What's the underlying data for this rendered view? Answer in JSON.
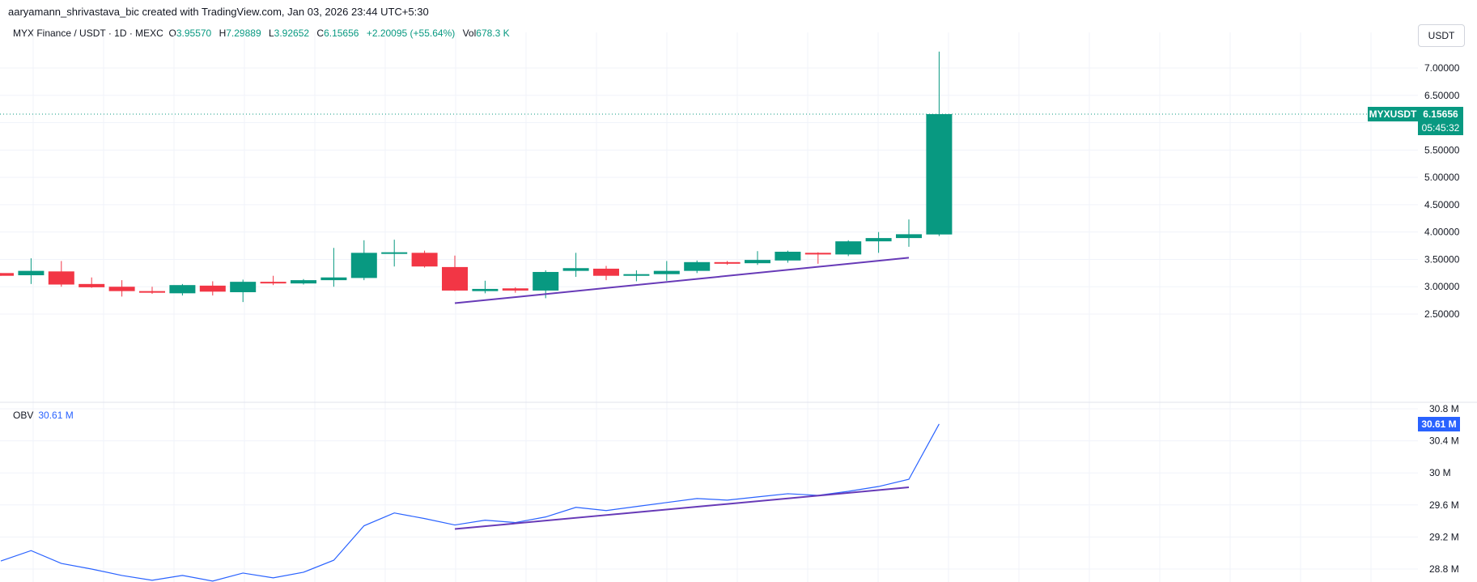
{
  "header": {
    "credit": "aaryamann_shrivastava_bic created with TradingView.com, Jan 03, 2026 23:44 UTC+5:30"
  },
  "legend": {
    "symbol": "MYX Finance / USDT · 1D · MEXC",
    "open_label": "O",
    "open": "3.95570",
    "high_label": "H",
    "high": "7.29889",
    "low_label": "L",
    "low": "3.92652",
    "close_label": "C",
    "close": "6.15656",
    "change": "+2.20095 (+55.64%)",
    "vol_label": "Vol",
    "vol": "678.3 K"
  },
  "currency_button": "USDT",
  "price_tag": {
    "symbol": "MYXUSDT",
    "price": "6.15656",
    "countdown": "05:45:32"
  },
  "obv": {
    "label": "OBV",
    "value": "30.61 M"
  },
  "colors": {
    "up": "#089981",
    "down": "#f23645",
    "obv_line": "#2962ff",
    "trendline": "#673ab7",
    "obv_tag": "#2962ff"
  },
  "chart_data": [
    {
      "type": "candlestick",
      "title": "MYX Finance / USDT · 1D · MEXC",
      "y_axis_ticks": [
        "7.00000",
        "6.50000",
        "6.00000",
        "5.50000",
        "5.00000",
        "4.50000",
        "4.00000",
        "3.50000",
        "3.00000",
        "2.50000"
      ],
      "ylim": [
        2.2,
        7.5
      ],
      "candles": [
        {
          "o": 3.25,
          "h": 3.25,
          "l": 3.2,
          "c": 3.2
        },
        {
          "o": 3.21,
          "h": 3.52,
          "l": 3.05,
          "c": 3.29
        },
        {
          "o": 3.28,
          "h": 3.47,
          "l": 3.0,
          "c": 3.04
        },
        {
          "o": 3.05,
          "h": 3.17,
          "l": 2.98,
          "c": 2.99
        },
        {
          "o": 3.0,
          "h": 3.12,
          "l": 2.82,
          "c": 2.92
        },
        {
          "o": 2.92,
          "h": 3.0,
          "l": 2.87,
          "c": 2.9
        },
        {
          "o": 2.88,
          "h": 3.05,
          "l": 2.84,
          "c": 3.03
        },
        {
          "o": 3.02,
          "h": 3.1,
          "l": 2.84,
          "c": 2.91
        },
        {
          "o": 2.9,
          "h": 3.13,
          "l": 2.72,
          "c": 3.09
        },
        {
          "o": 3.09,
          "h": 3.2,
          "l": 3.03,
          "c": 3.07
        },
        {
          "o": 3.06,
          "h": 3.14,
          "l": 3.04,
          "c": 3.12
        },
        {
          "o": 3.12,
          "h": 3.71,
          "l": 3.0,
          "c": 3.17
        },
        {
          "o": 3.16,
          "h": 3.85,
          "l": 3.12,
          "c": 3.62
        },
        {
          "o": 3.61,
          "h": 3.86,
          "l": 3.37,
          "c": 3.63
        },
        {
          "o": 3.62,
          "h": 3.66,
          "l": 3.35,
          "c": 3.37
        },
        {
          "o": 3.36,
          "h": 3.57,
          "l": 2.92,
          "c": 2.93
        },
        {
          "o": 2.92,
          "h": 3.11,
          "l": 2.88,
          "c": 2.96
        },
        {
          "o": 2.97,
          "h": 2.99,
          "l": 2.89,
          "c": 2.93
        },
        {
          "o": 2.93,
          "h": 3.3,
          "l": 2.79,
          "c": 3.27
        },
        {
          "o": 3.29,
          "h": 3.62,
          "l": 3.18,
          "c": 3.34
        },
        {
          "o": 3.33,
          "h": 3.38,
          "l": 3.12,
          "c": 3.2
        },
        {
          "o": 3.2,
          "h": 3.3,
          "l": 3.1,
          "c": 3.23
        },
        {
          "o": 3.23,
          "h": 3.47,
          "l": 3.11,
          "c": 3.29
        },
        {
          "o": 3.29,
          "h": 3.48,
          "l": 3.25,
          "c": 3.45
        },
        {
          "o": 3.45,
          "h": 3.47,
          "l": 3.4,
          "c": 3.43
        },
        {
          "o": 3.43,
          "h": 3.65,
          "l": 3.4,
          "c": 3.49
        },
        {
          "o": 3.48,
          "h": 3.66,
          "l": 3.44,
          "c": 3.64
        },
        {
          "o": 3.62,
          "h": 3.63,
          "l": 3.42,
          "c": 3.59
        },
        {
          "o": 3.59,
          "h": 3.85,
          "l": 3.56,
          "c": 3.83
        },
        {
          "o": 3.83,
          "h": 4.0,
          "l": 3.62,
          "c": 3.89
        },
        {
          "o": 3.89,
          "h": 4.23,
          "l": 3.73,
          "c": 3.96
        },
        {
          "o": 3.9557,
          "h": 7.29889,
          "l": 3.92652,
          "c": 6.15656
        }
      ],
      "trendline": {
        "from": {
          "i": 15,
          "y": 2.7
        },
        "to": {
          "i": 30,
          "y": 3.53
        }
      },
      "last_price": 6.15656
    },
    {
      "type": "line",
      "series": [
        {
          "name": "OBV",
          "values": [
            28.9,
            29.03,
            28.87,
            28.8,
            28.72,
            28.66,
            28.72,
            28.65,
            28.75,
            28.69,
            28.76,
            28.91,
            29.34,
            29.5,
            29.43,
            29.35,
            29.41,
            29.38,
            29.45,
            29.57,
            29.53,
            29.58,
            29.63,
            29.68,
            29.66,
            29.7,
            29.74,
            29.72,
            29.77,
            29.83,
            29.92,
            30.61
          ]
        }
      ],
      "y_axis_ticks": [
        "30.8 M",
        "30.4 M",
        "30 M",
        "29.6 M",
        "29.2 M",
        "28.8 M"
      ],
      "ylim": [
        28.6,
        30.85
      ],
      "trendline": {
        "from": {
          "i": 15,
          "y": 29.3
        },
        "to": {
          "i": 30,
          "y": 29.82
        }
      }
    }
  ]
}
